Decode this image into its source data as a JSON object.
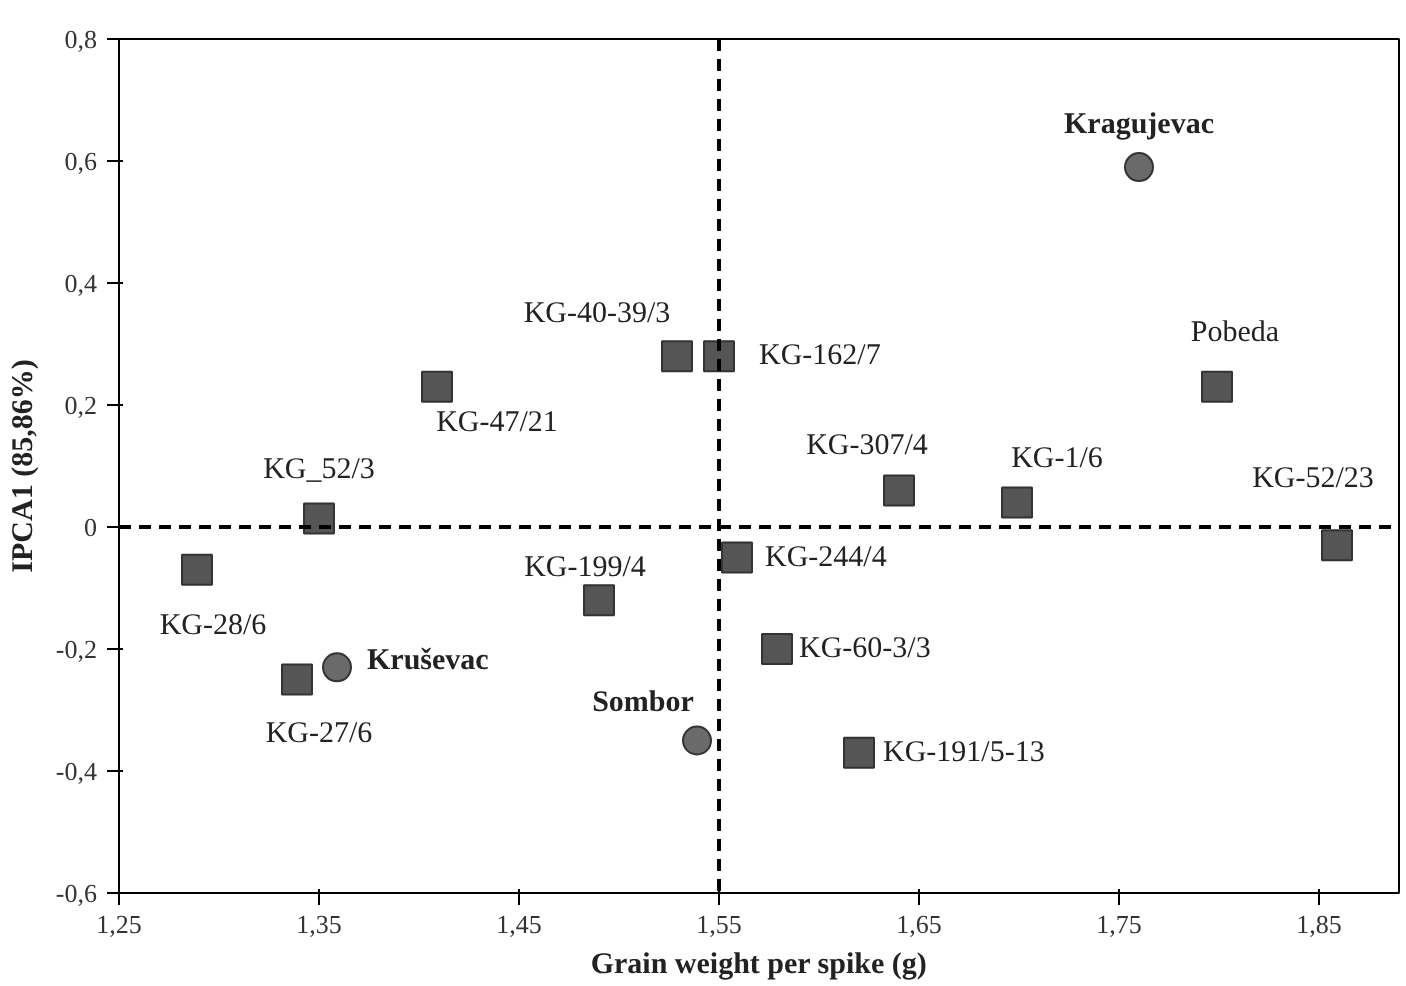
{
  "chart_data": {
    "type": "scatter",
    "xlabel": "Grain weight per spike (g)",
    "ylabel": "IPCA1 (85,86%)",
    "xlim": [
      1.25,
      1.89
    ],
    "ylim": [
      -0.6,
      0.8
    ],
    "xticks": [
      {
        "value": 1.25,
        "label": "1,25"
      },
      {
        "value": 1.35,
        "label": "1,35"
      },
      {
        "value": 1.45,
        "label": "1,45"
      },
      {
        "value": 1.55,
        "label": "1,55"
      },
      {
        "value": 1.65,
        "label": "1,65"
      },
      {
        "value": 1.75,
        "label": "1,75"
      },
      {
        "value": 1.85,
        "label": "1,85"
      }
    ],
    "yticks": [
      {
        "value": -0.6,
        "label": "-0,6"
      },
      {
        "value": -0.4,
        "label": "-0,4"
      },
      {
        "value": -0.2,
        "label": "-0,2"
      },
      {
        "value": 0,
        "label": "0"
      },
      {
        "value": 0.2,
        "label": "0,2"
      },
      {
        "value": 0.4,
        "label": "0,4"
      },
      {
        "value": 0.6,
        "label": "0,6"
      },
      {
        "value": 0.8,
        "label": "0,8"
      }
    ],
    "grid": false,
    "series": [
      {
        "marker": "square",
        "color": "#555555",
        "x": [
          1.289,
          1.35,
          1.409,
          1.529,
          1.55,
          1.49,
          1.339,
          1.559,
          1.579,
          1.62,
          1.64,
          1.699,
          1.799,
          1.859
        ],
        "values": [
          -0.07,
          0.014,
          0.23,
          0.28,
          0.28,
          -0.12,
          -0.25,
          -0.05,
          -0.2,
          -0.37,
          0.06,
          0.04,
          0.23,
          -0.03
        ]
      },
      {
        "marker": "circle",
        "color": "#6a6a6a",
        "x": [
          1.359,
          1.539,
          1.76
        ],
        "values": [
          -0.23,
          -0.35,
          0.59
        ]
      }
    ],
    "ref_lines": [
      {
        "axis": "x",
        "value": 1.55,
        "color": "#000000",
        "line_style": "dashed"
      },
      {
        "axis": "y",
        "value": 0,
        "color": "#000000",
        "line_style": "dashed"
      }
    ],
    "annotations": [
      {
        "text": "KG-28/6",
        "x": 1.289,
        "y": -0.07
      },
      {
        "text": "KG_52/3",
        "x": 1.35,
        "y": 0.014
      },
      {
        "text": "KG-47/21",
        "x": 1.409,
        "y": 0.23
      },
      {
        "text": "KG-40-39/3",
        "x": 1.529,
        "y": 0.28
      },
      {
        "text": "KG-162/7",
        "x": 1.55,
        "y": 0.28
      },
      {
        "text": "KG-199/4",
        "x": 1.49,
        "y": -0.12
      },
      {
        "text": "KG-27/6",
        "x": 1.339,
        "y": -0.25
      },
      {
        "text": "KG-244/4",
        "x": 1.559,
        "y": -0.05
      },
      {
        "text": "KG-60-3/3",
        "x": 1.579,
        "y": -0.2
      },
      {
        "text": "KG-191/5-13",
        "x": 1.62,
        "y": -0.37
      },
      {
        "text": "KG-307/4",
        "x": 1.64,
        "y": 0.06
      },
      {
        "text": "KG-1/6",
        "x": 1.699,
        "y": 0.04
      },
      {
        "text": "Pobeda",
        "x": 1.799,
        "y": 0.23
      },
      {
        "text": "KG-52/23",
        "x": 1.859,
        "y": -0.03
      },
      {
        "text": "Kruševac",
        "x": 1.359,
        "y": -0.23
      },
      {
        "text": "Sombor",
        "x": 1.539,
        "y": -0.35
      },
      {
        "text": "Kragujevac",
        "x": 1.76,
        "y": 0.59
      }
    ]
  }
}
